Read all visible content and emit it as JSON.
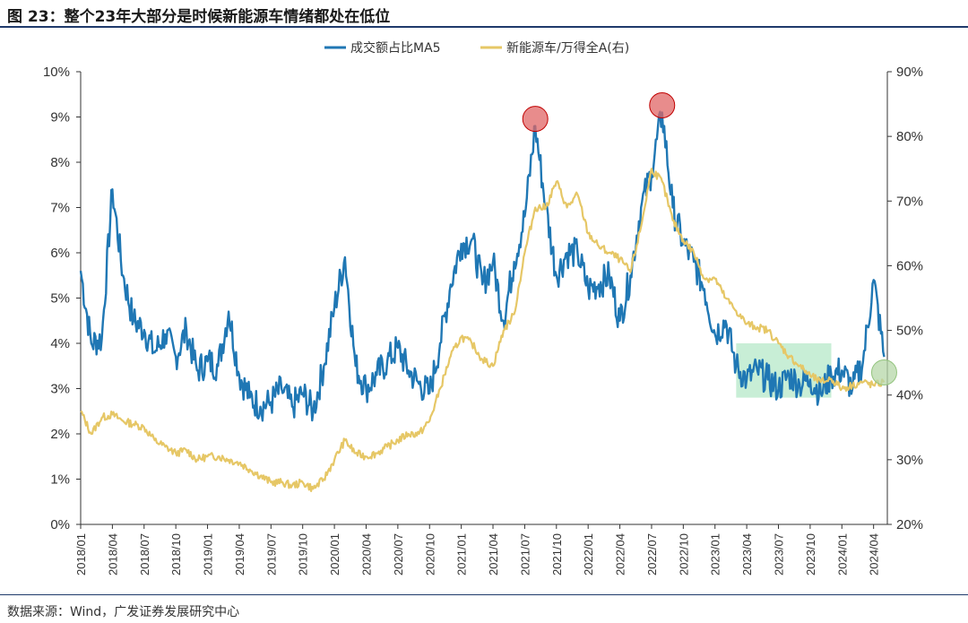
{
  "figure": {
    "title": "图 23：整个23年大部分是时候新能源车情绪都处在低位",
    "source": "数据来源：Wind，广发证券发展研究中心"
  },
  "chart_data": {
    "type": "line",
    "title": "",
    "legend_position": "top-center",
    "x_ticks": [
      "2018/01",
      "2018/04",
      "2018/07",
      "2018/10",
      "2019/01",
      "2019/04",
      "2019/07",
      "2019/10",
      "2020/01",
      "2020/04",
      "2020/07",
      "2020/10",
      "2021/01",
      "2021/04",
      "2021/07",
      "2021/10",
      "2022/01",
      "2022/04",
      "2022/07",
      "2022/10",
      "2023/01",
      "2023/04",
      "2023/07",
      "2023/10",
      "2024/01",
      "2024/04"
    ],
    "left_axis": {
      "ylim": [
        0,
        10
      ],
      "ticks": [
        "0%",
        "1%",
        "2%",
        "3%",
        "4%",
        "5%",
        "6%",
        "7%",
        "8%",
        "9%",
        "10%"
      ]
    },
    "right_axis": {
      "ylim": [
        20,
        90
      ],
      "ticks": [
        "20%",
        "30%",
        "40%",
        "50%",
        "60%",
        "70%",
        "80%",
        "90%"
      ]
    },
    "series": [
      {
        "name": "成交额占比MA5",
        "axis": "left",
        "color": "#1f77b4",
        "points": [
          [
            "2018/01",
            5.6
          ],
          [
            "2018/02",
            4.0
          ],
          [
            "2018/03",
            4.1
          ],
          [
            "2018/04",
            7.4
          ],
          [
            "2018/05",
            5.5
          ],
          [
            "2018/06",
            4.5
          ],
          [
            "2018/07",
            4.3
          ],
          [
            "2018/08",
            3.8
          ],
          [
            "2018/09",
            4.2
          ],
          [
            "2018/10",
            3.7
          ],
          [
            "2018/11",
            4.3
          ],
          [
            "2018/12",
            3.4
          ],
          [
            "2019/01",
            3.6
          ],
          [
            "2019/02",
            3.5
          ],
          [
            "2019/03",
            4.7
          ],
          [
            "2019/04",
            3.3
          ],
          [
            "2019/05",
            2.8
          ],
          [
            "2019/06",
            2.6
          ],
          [
            "2019/07",
            2.7
          ],
          [
            "2019/08",
            3.0
          ],
          [
            "2019/09",
            2.6
          ],
          [
            "2019/10",
            2.9
          ],
          [
            "2019/11",
            2.5
          ],
          [
            "2019/12",
            3.5
          ],
          [
            "2020/01",
            4.8
          ],
          [
            "2020/02",
            5.9
          ],
          [
            "2020/03",
            3.5
          ],
          [
            "2020/04",
            3.0
          ],
          [
            "2020/05",
            3.3
          ],
          [
            "2020/06",
            3.6
          ],
          [
            "2020/07",
            3.9
          ],
          [
            "2020/08",
            3.4
          ],
          [
            "2020/09",
            3.1
          ],
          [
            "2020/10",
            2.9
          ],
          [
            "2020/11",
            4.0
          ],
          [
            "2020/12",
            5.3
          ],
          [
            "2021/01",
            6.2
          ],
          [
            "2021/02",
            6.3
          ],
          [
            "2021/03",
            5.3
          ],
          [
            "2021/04",
            5.8
          ],
          [
            "2021/05",
            4.5
          ],
          [
            "2021/06",
            5.8
          ],
          [
            "2021/07",
            6.8
          ],
          [
            "2021/08",
            8.8
          ],
          [
            "2021/09",
            7.0
          ],
          [
            "2021/10",
            5.5
          ],
          [
            "2021/11",
            6.0
          ],
          [
            "2021/12",
            6.0
          ],
          [
            "2022/01",
            5.2
          ],
          [
            "2022/02",
            5.3
          ],
          [
            "2022/03",
            5.5
          ],
          [
            "2022/04",
            4.5
          ],
          [
            "2022/05",
            5.5
          ],
          [
            "2022/06",
            7.0
          ],
          [
            "2022/07",
            7.8
          ],
          [
            "2022/08",
            9.1
          ],
          [
            "2022/09",
            7.0
          ],
          [
            "2022/10",
            6.2
          ],
          [
            "2022/11",
            5.8
          ],
          [
            "2022/12",
            5.2
          ],
          [
            "2023/01",
            4.2
          ],
          [
            "2023/02",
            4.5
          ],
          [
            "2023/03",
            3.5
          ],
          [
            "2023/04",
            3.2
          ],
          [
            "2023/05",
            3.4
          ],
          [
            "2023/06",
            3.2
          ],
          [
            "2023/07",
            3.0
          ],
          [
            "2023/08",
            3.3
          ],
          [
            "2023/09",
            3.1
          ],
          [
            "2023/10",
            3.2
          ],
          [
            "2023/11",
            2.9
          ],
          [
            "2023/12",
            3.3
          ],
          [
            "2024/01",
            3.4
          ],
          [
            "2024/02",
            3.0
          ],
          [
            "2024/03",
            3.6
          ],
          [
            "2024/04",
            5.4
          ],
          [
            "2024/05",
            3.7
          ]
        ]
      },
      {
        "name": "新能源车/万得全A(右)",
        "axis": "right",
        "color": "#e6c766",
        "points": [
          [
            "2018/01",
            37.5
          ],
          [
            "2018/02",
            34
          ],
          [
            "2018/03",
            36.5
          ],
          [
            "2018/04",
            37
          ],
          [
            "2018/05",
            36
          ],
          [
            "2018/06",
            35.5
          ],
          [
            "2018/07",
            35
          ],
          [
            "2018/08",
            33
          ],
          [
            "2018/09",
            32
          ],
          [
            "2018/10",
            31
          ],
          [
            "2018/11",
            31.5
          ],
          [
            "2018/12",
            30
          ],
          [
            "2019/01",
            30.5
          ],
          [
            "2019/02",
            30.5
          ],
          [
            "2019/03",
            30
          ],
          [
            "2019/04",
            29.5
          ],
          [
            "2019/05",
            28.5
          ],
          [
            "2019/06",
            27.5
          ],
          [
            "2019/07",
            26.5
          ],
          [
            "2019/08",
            26.5
          ],
          [
            "2019/09",
            26
          ],
          [
            "2019/10",
            26.5
          ],
          [
            "2019/11",
            25.5
          ],
          [
            "2019/12",
            27
          ],
          [
            "2020/01",
            30
          ],
          [
            "2020/02",
            33
          ],
          [
            "2020/03",
            31
          ],
          [
            "2020/04",
            30.5
          ],
          [
            "2020/05",
            31
          ],
          [
            "2020/06",
            32
          ],
          [
            "2020/07",
            33
          ],
          [
            "2020/08",
            34
          ],
          [
            "2020/09",
            34
          ],
          [
            "2020/10",
            36
          ],
          [
            "2020/11",
            41
          ],
          [
            "2020/12",
            46
          ],
          [
            "2021/01",
            49
          ],
          [
            "2021/02",
            48
          ],
          [
            "2021/03",
            45.5
          ],
          [
            "2021/04",
            44.5
          ],
          [
            "2021/05",
            50
          ],
          [
            "2021/06",
            52.5
          ],
          [
            "2021/07",
            62
          ],
          [
            "2021/08",
            69
          ],
          [
            "2021/09",
            69
          ],
          [
            "2021/10",
            73
          ],
          [
            "2021/11",
            69
          ],
          [
            "2021/12",
            71
          ],
          [
            "2022/01",
            65
          ],
          [
            "2022/02",
            63
          ],
          [
            "2022/03",
            62
          ],
          [
            "2022/04",
            61
          ],
          [
            "2022/05",
            59
          ],
          [
            "2022/06",
            66
          ],
          [
            "2022/07",
            75
          ],
          [
            "2022/08",
            73
          ],
          [
            "2022/09",
            67
          ],
          [
            "2022/10",
            64
          ],
          [
            "2022/11",
            62
          ],
          [
            "2022/12",
            58
          ],
          [
            "2023/01",
            58
          ],
          [
            "2023/02",
            55
          ],
          [
            "2023/03",
            53
          ],
          [
            "2023/04",
            51
          ],
          [
            "2023/05",
            50.5
          ],
          [
            "2023/06",
            50
          ],
          [
            "2023/07",
            48
          ],
          [
            "2023/08",
            46
          ],
          [
            "2023/09",
            44.5
          ],
          [
            "2023/10",
            43
          ],
          [
            "2023/11",
            42
          ],
          [
            "2023/12",
            42.5
          ],
          [
            "2024/01",
            41
          ],
          [
            "2024/02",
            41.5
          ],
          [
            "2024/03",
            42
          ],
          [
            "2024/04",
            41.5
          ],
          [
            "2024/05",
            42
          ]
        ]
      }
    ],
    "highlight_markers": [
      {
        "shape": "circle",
        "color": "#e06666",
        "at": [
          "2021/08",
          8.8
        ],
        "axis": "left"
      },
      {
        "shape": "circle",
        "color": "#e06666",
        "at": [
          "2022/08",
          9.1
        ],
        "axis": "left"
      },
      {
        "shape": "circle",
        "color": "#b6d7a8",
        "at": [
          "2024/05",
          43.5
        ],
        "axis": "right"
      }
    ],
    "highlight_region": {
      "color": "#b6e8c8",
      "x_range": [
        "2023/03",
        "2023/12"
      ],
      "y_range": [
        2.8,
        4.0
      ],
      "axis": "left"
    }
  }
}
